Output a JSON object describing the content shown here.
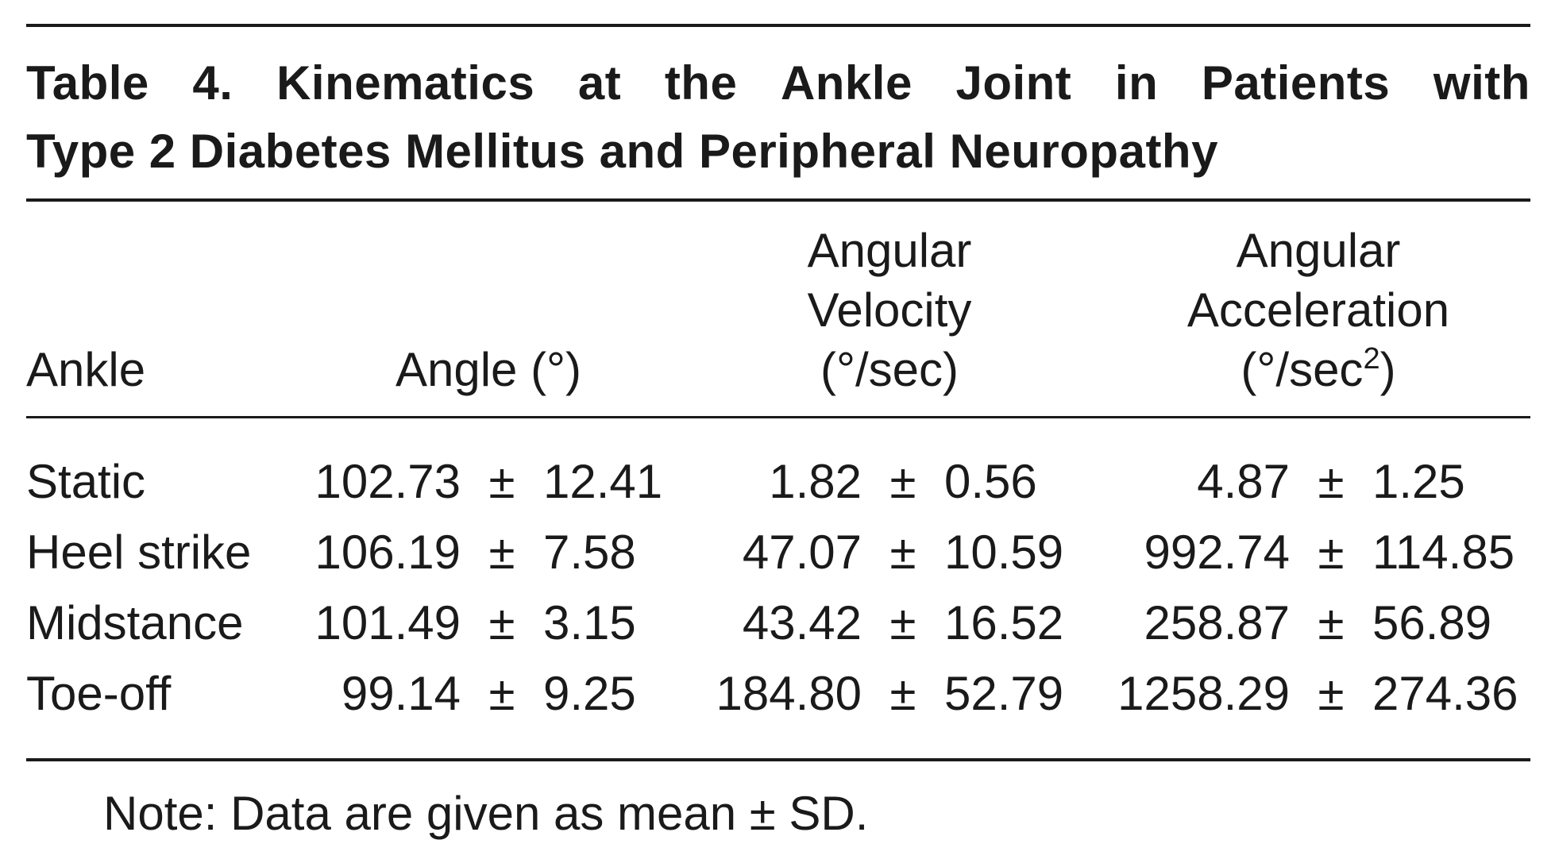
{
  "title": {
    "line1_words": [
      "Table",
      "4.",
      "Kinematics",
      "at",
      "the",
      "Ankle",
      "Joint",
      "in",
      "Patients",
      "with"
    ],
    "line2": "Type 2 Diabetes Mellitus and Peripheral Neuropathy"
  },
  "headers": {
    "ankle": "Ankle",
    "angle": "Angle (°)",
    "velocity": [
      "Angular",
      "Velocity",
      "(°/sec)"
    ],
    "acceleration_lines": [
      "Angular",
      "Acceleration"
    ],
    "acceleration_unit_prefix": "(°/sec",
    "acceleration_unit_sup": "2",
    "acceleration_unit_suffix": ")"
  },
  "pm_symbol": "±",
  "rows": [
    {
      "label": "Static",
      "angle": [
        "102.73",
        "12.41"
      ],
      "velocity": [
        "1.82",
        "0.56"
      ],
      "acceleration": [
        "4.87",
        "1.25"
      ]
    },
    {
      "label": "Heel strike",
      "angle": [
        "106.19",
        "7.58"
      ],
      "velocity": [
        "47.07",
        "10.59"
      ],
      "acceleration": [
        "992.74",
        "114.85"
      ]
    },
    {
      "label": "Midstance",
      "angle": [
        "101.49",
        "3.15"
      ],
      "velocity": [
        "43.42",
        "16.52"
      ],
      "acceleration": [
        "258.87",
        "56.89"
      ]
    },
    {
      "label": "Toe-off",
      "angle": [
        "99.14",
        "9.25"
      ],
      "velocity": [
        "184.80",
        "52.79"
      ],
      "acceleration": [
        "1258.29",
        "274.36"
      ]
    }
  ],
  "note": "Note: Data are given as mean ± SD."
}
